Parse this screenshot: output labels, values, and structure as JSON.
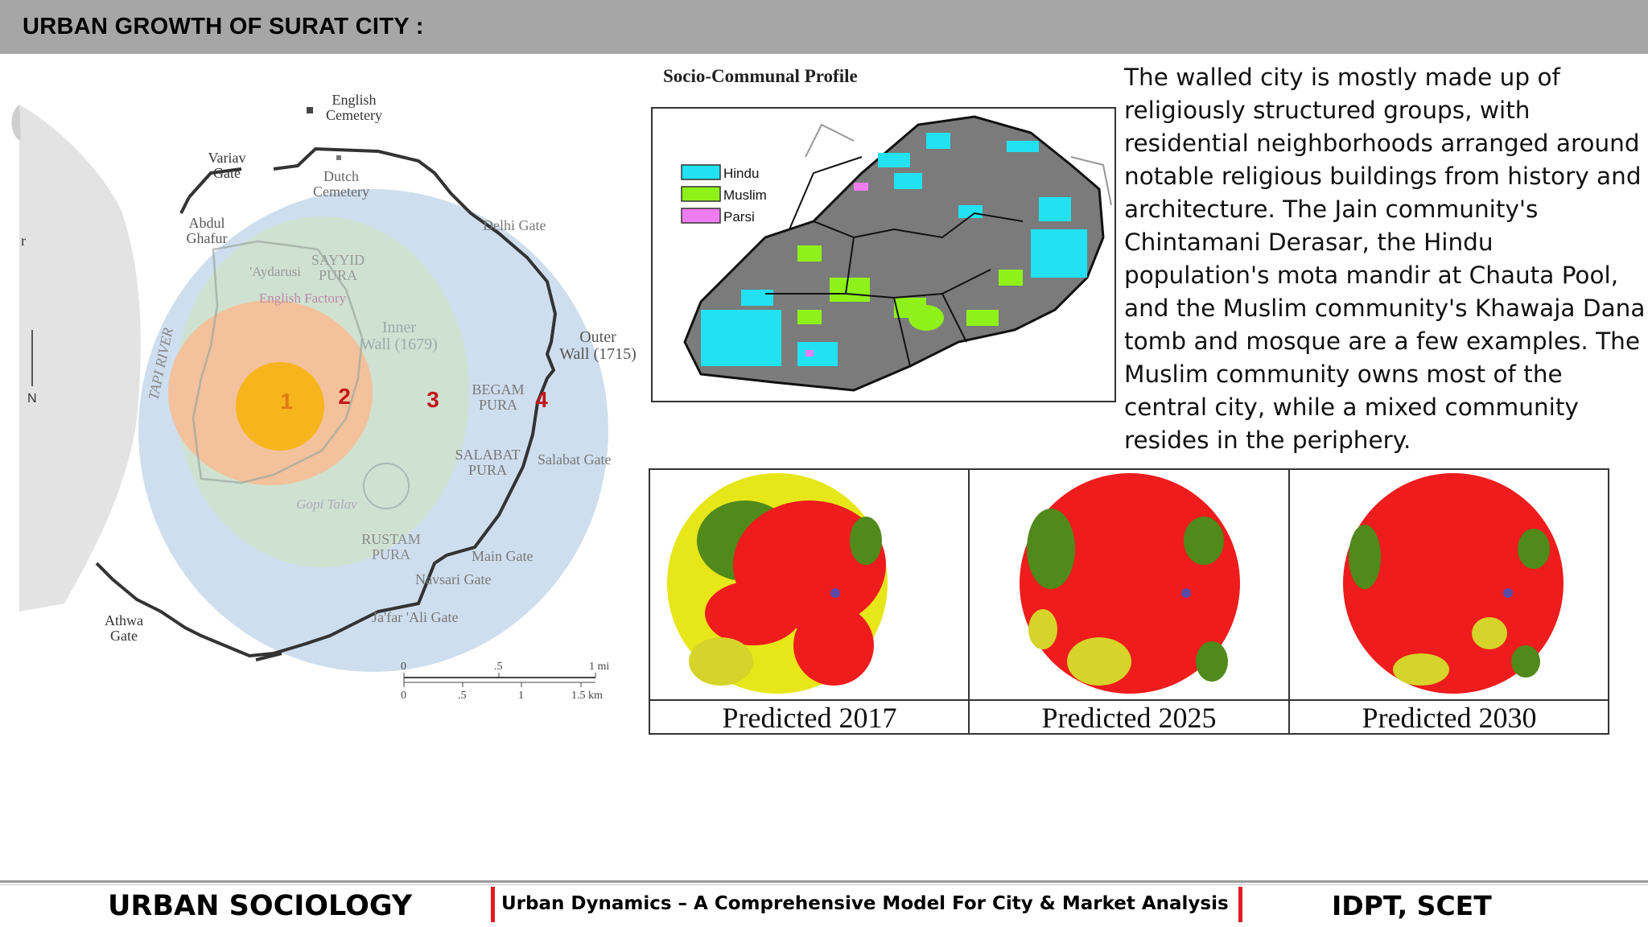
{
  "header": {
    "title": "URBAN GROWTH OF SURAT CITY :"
  },
  "map": {
    "labels": {
      "english_cemetery": "English\nCemetery",
      "variav_gate": "Variav\nGate",
      "dutch_cemetery": "Dutch\nCemetery",
      "abdul_ghafur": "Abdul\nGhafur",
      "delhi_gate": "Delhi Gate",
      "aydarusi": "'Aydarusi",
      "sayyid_pura": "SAYYID\nPURA",
      "english_factory": "English Factory",
      "inner_wall": "Inner\nWall (1679)",
      "outer_wall": "Outer\nWall (1715)",
      "tapi_river": "TAPI RIVER",
      "north": "N",
      "begam_pura": "BEGAM\nPURA",
      "salabat_pura": "SALABAT\nPURA",
      "salabat_gate": "Salabat Gate",
      "gopi_talav": "Gopi Talav",
      "rustam_pura": "RUSTAM\nPURA",
      "main_gate": "Main Gate",
      "navsari_gate": "Navsari Gate",
      "jafar_ali_gate": "Ja'far 'Ali Gate",
      "athwa_gate": "Athwa\nGate",
      "left_edge_r": "r"
    },
    "zones": [
      "1",
      "2",
      "3",
      "4"
    ],
    "zone_colors": {
      "zone1": "#f7b51d",
      "zone2": "#f4bf98",
      "zone3": "#cfe1cc",
      "zone4": "#c5d8eb",
      "zone_number_1": "#e07b12",
      "zone_number_other": "#c0161b"
    },
    "scale": {
      "mi_ticks": [
        "0",
        ".5",
        "1 mi"
      ],
      "km_ticks": [
        "0",
        ".5",
        "1",
        "1.5 km"
      ]
    }
  },
  "socio_profile": {
    "title": "Socio-Communal Profile",
    "legend": [
      {
        "label": "Hindu",
        "color": "#22e1f2"
      },
      {
        "label": "Muslim",
        "color": "#8ef21a"
      },
      {
        "label": "Parsi",
        "color": "#f07cf2"
      }
    ]
  },
  "description": "The walled city is mostly made up of religiously structured groups, with residential neighborhoods arranged around notable religious buildings from history and architecture. The Jain community's Chintamani Derasar, the Hindu population's mota mandir at Chauta Pool, and the Muslim community's Khawaja Dana tomb and mosque are a few examples. The Muslim community owns most of the central city, while a mixed community resides in the periphery.",
  "predictions": [
    {
      "label": "Predicted 2017"
    },
    {
      "label": "Predicted 2025"
    },
    {
      "label": "Predicted 2030"
    }
  ],
  "footer": {
    "left": "URBAN SOCIOLOGY",
    "middle": "Urban Dynamics – A Comprehensive Model For City & Market Analysis",
    "right": "IDPT, SCET"
  }
}
